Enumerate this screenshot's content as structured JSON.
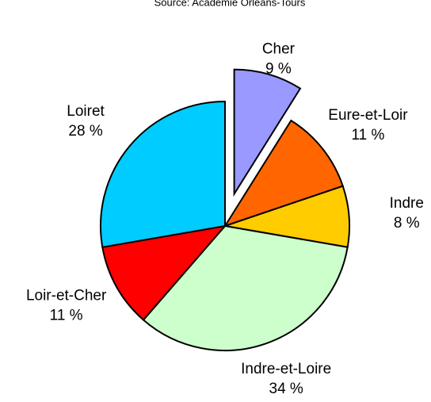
{
  "chart_data": {
    "type": "pie",
    "subtitle": "Source: Académie Orléans-Tours",
    "categories": [
      "Cher",
      "Eure-et-Loir",
      "Indre",
      "Indre-et-Loire",
      "Loir-et-Cher",
      "Loiret"
    ],
    "values": [
      9,
      11,
      8,
      34,
      11,
      28
    ],
    "value_labels": [
      "9 %",
      "11 %",
      "8 %",
      "34 %",
      "11 %",
      "28 %"
    ],
    "colors": [
      "#9999ff",
      "#ff6600",
      "#ffcc00",
      "#ccffcc",
      "#ff0000",
      "#00ccff"
    ],
    "exploded": [
      true,
      false,
      false,
      false,
      false,
      false
    ]
  }
}
